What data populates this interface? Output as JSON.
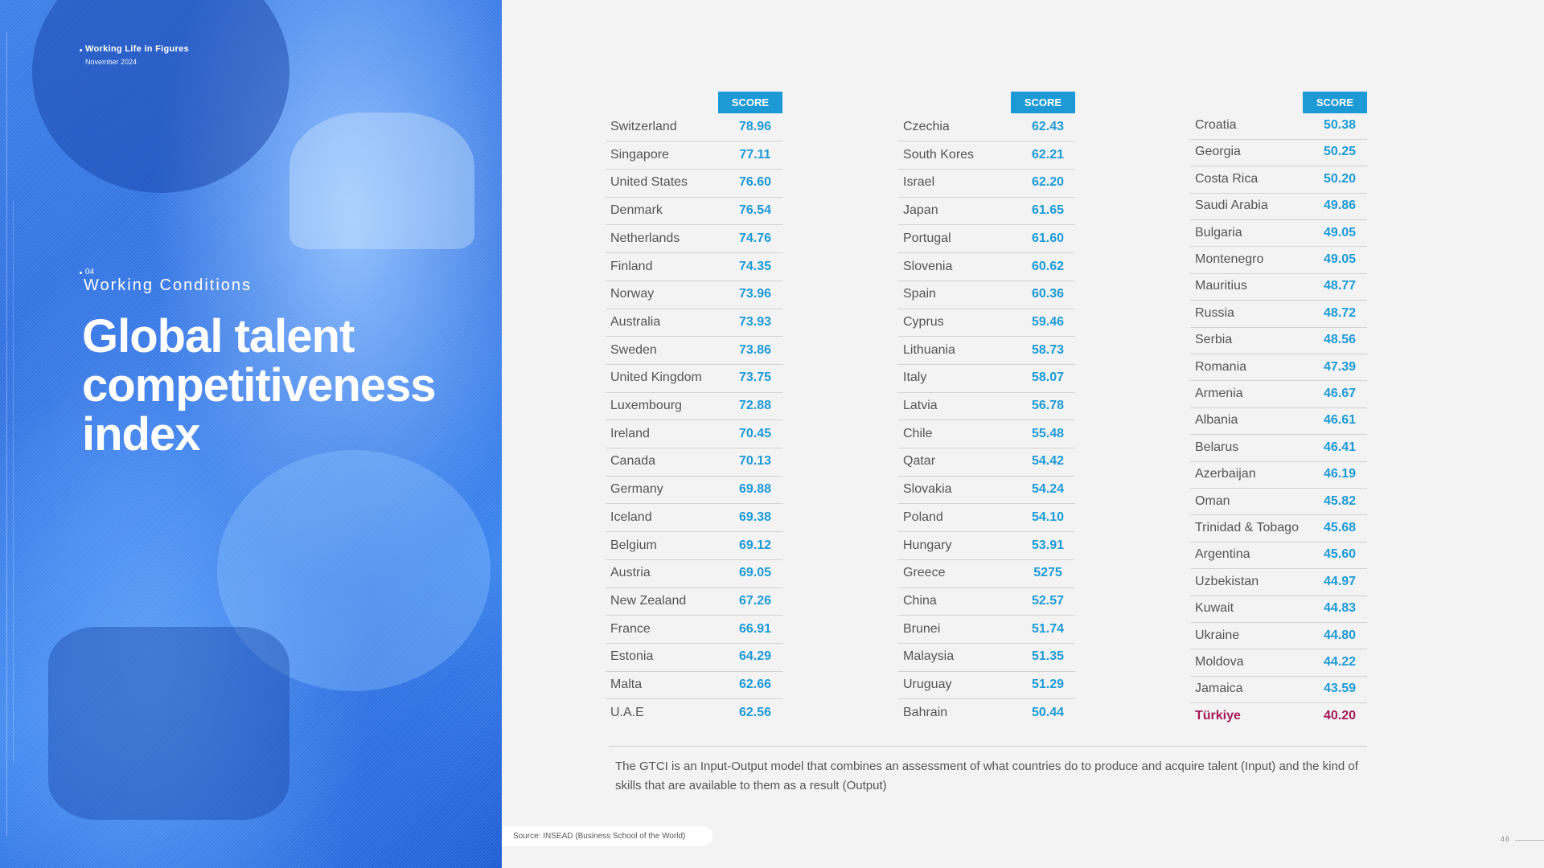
{
  "header": {
    "publication": "Working Life in Figures",
    "date": "November 2024"
  },
  "section": {
    "number": "04",
    "name": "Working Conditions"
  },
  "title_lines": [
    "Global talent",
    "competitiveness",
    "index"
  ],
  "score_header": "SCORE",
  "tables": [
    {
      "rows": [
        {
          "country": "Switzerland",
          "score": "78.96"
        },
        {
          "country": "Singapore",
          "score": "77.11"
        },
        {
          "country": "United States",
          "score": "76.60"
        },
        {
          "country": "Denmark",
          "score": "76.54"
        },
        {
          "country": "Netherlands",
          "score": "74.76"
        },
        {
          "country": "Finland",
          "score": "74.35"
        },
        {
          "country": "Norway",
          "score": "73.96"
        },
        {
          "country": "Australia",
          "score": "73.93"
        },
        {
          "country": "Sweden",
          "score": "73.86"
        },
        {
          "country": "United Kingdom",
          "score": "73.75"
        },
        {
          "country": "Luxembourg",
          "score": "72.88"
        },
        {
          "country": "Ireland",
          "score": "70.45"
        },
        {
          "country": "Canada",
          "score": "70.13"
        },
        {
          "country": "Germany",
          "score": "69.88"
        },
        {
          "country": "Iceland",
          "score": "69.38"
        },
        {
          "country": "Belgium",
          "score": "69.12"
        },
        {
          "country": "Austria",
          "score": "69.05"
        },
        {
          "country": "New Zealand",
          "score": "67.26"
        },
        {
          "country": "France",
          "score": "66.91"
        },
        {
          "country": "Estonia",
          "score": "64.29"
        },
        {
          "country": "Malta",
          "score": "62.66"
        },
        {
          "country": "U.A.E",
          "score": "62.56"
        }
      ]
    },
    {
      "rows": [
        {
          "country": "Czechia",
          "score": "62.43"
        },
        {
          "country": "South Kores",
          "score": "62.21"
        },
        {
          "country": "Israel",
          "score": "62.20"
        },
        {
          "country": "Japan",
          "score": "61.65"
        },
        {
          "country": "Portugal",
          "score": "61.60"
        },
        {
          "country": "Slovenia",
          "score": "60.62"
        },
        {
          "country": "Spain",
          "score": "60.36"
        },
        {
          "country": "Cyprus",
          "score": "59.46"
        },
        {
          "country": "Lithuania",
          "score": "58.73"
        },
        {
          "country": "Italy",
          "score": "58.07"
        },
        {
          "country": "Latvia",
          "score": "56.78"
        },
        {
          "country": "Chile",
          "score": "55.48"
        },
        {
          "country": "Qatar",
          "score": "54.42"
        },
        {
          "country": "Slovakia",
          "score": "54.24"
        },
        {
          "country": "Poland",
          "score": "54.10"
        },
        {
          "country": "Hungary",
          "score": "53.91"
        },
        {
          "country": "Greece",
          "score": "5275"
        },
        {
          "country": "China",
          "score": "52.57"
        },
        {
          "country": "Brunei",
          "score": "51.74"
        },
        {
          "country": "Malaysia",
          "score": "51.35"
        },
        {
          "country": "Uruguay",
          "score": "51.29"
        },
        {
          "country": "Bahrain",
          "score": "50.44"
        }
      ]
    },
    {
      "rows": [
        {
          "country": "Croatia",
          "score": "50.38"
        },
        {
          "country": "Georgia",
          "score": "50.25"
        },
        {
          "country": "Costa Rica",
          "score": "50.20"
        },
        {
          "country": "Saudi Arabia",
          "score": "49.86"
        },
        {
          "country": "Bulgaria",
          "score": "49.05"
        },
        {
          "country": "Montenegro",
          "score": "49.05"
        },
        {
          "country": "Mauritius",
          "score": "48.77"
        },
        {
          "country": "Russia",
          "score": "48.72"
        },
        {
          "country": "Serbia",
          "score": "48.56"
        },
        {
          "country": "Romania",
          "score": "47.39"
        },
        {
          "country": "Armenia",
          "score": "46.67"
        },
        {
          "country": "Albania",
          "score": "46.61"
        },
        {
          "country": "Belarus",
          "score": "46.41"
        },
        {
          "country": "Azerbaijan",
          "score": "46.19"
        },
        {
          "country": "Oman",
          "score": "45.82"
        },
        {
          "country": "Trinidad & Tobago",
          "score": "45.68"
        },
        {
          "country": "Argentina",
          "score": "45.60"
        },
        {
          "country": "Uzbekistan",
          "score": "44.97"
        },
        {
          "country": "Kuwait",
          "score": "44.83"
        },
        {
          "country": "Ukraine",
          "score": "44.80"
        },
        {
          "country": "Moldova",
          "score": "44.22"
        },
        {
          "country": "Jamaica",
          "score": "43.59"
        },
        {
          "country": "Türkiye",
          "score": "40.20",
          "highlight": true
        }
      ]
    }
  ],
  "footnote": "The GTCI is an Input-Output model that combines an assessment of what countries do to produce and acquire talent (Input) and the kind of skills that are available to them as a result (Output)",
  "source": "Source: INSEAD (Business School of the World)",
  "page_number": "46",
  "colors": {
    "accent": "#1d9ad6",
    "highlight": "#a3195b",
    "hero_blue": "#3d7fe9"
  }
}
